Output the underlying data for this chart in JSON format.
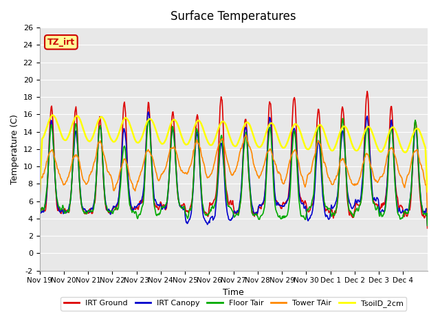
{
  "title": "Surface Temperatures",
  "xlabel": "Time",
  "ylabel": "Temperature (C)",
  "ylim": [
    -2,
    26
  ],
  "yticks": [
    -2,
    0,
    2,
    4,
    6,
    8,
    10,
    12,
    14,
    16,
    18,
    20,
    22,
    24,
    26
  ],
  "x_tick_labels": [
    "Nov 19",
    "Nov 20",
    "Nov 21",
    "Nov 22",
    "Nov 23",
    "Nov 24",
    "Nov 25",
    "Nov 26",
    "Nov 27",
    "Nov 28",
    "Nov 29",
    "Nov 30",
    "Dec 1",
    "Dec 2",
    "Dec 3",
    "Dec 4"
  ],
  "annotation_text": "TZ_irt",
  "annotation_bg": "#FFFF99",
  "annotation_border": "#CC0000",
  "annotation_text_color": "#CC0000",
  "plot_bg": "#E8E8E8",
  "fig_bg": "#FFFFFF",
  "series": [
    {
      "label": "IRT Ground",
      "color": "#DD0000",
      "lw": 1.2
    },
    {
      "label": "IRT Canopy",
      "color": "#0000CC",
      "lw": 1.2
    },
    {
      "label": "Floor Tair",
      "color": "#00AA00",
      "lw": 1.2
    },
    {
      "label": "Tower TAir",
      "color": "#FF8800",
      "lw": 1.2
    },
    {
      "label": "TsoilD_2cm",
      "color": "#FFFF00",
      "lw": 1.8
    }
  ],
  "n_days": 16,
  "points_per_day": 48
}
